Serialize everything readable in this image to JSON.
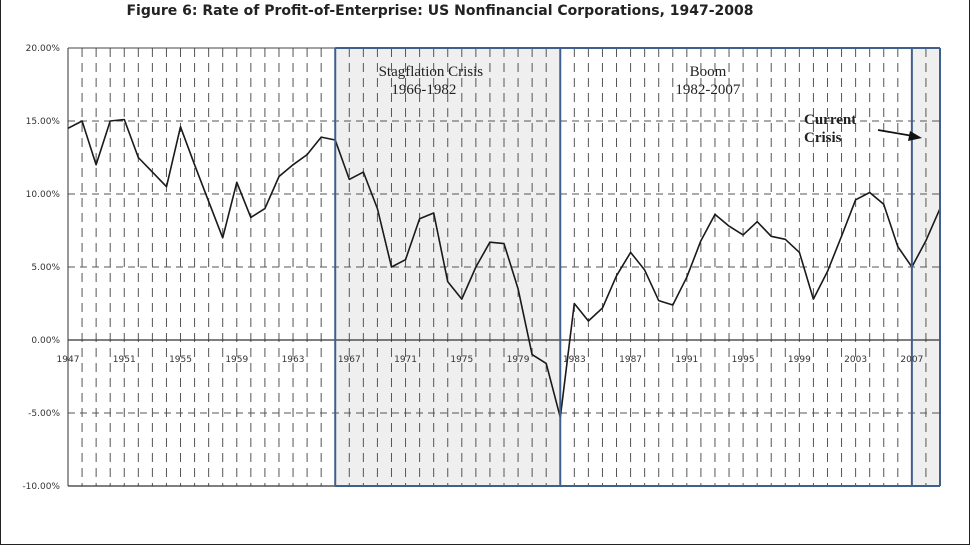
{
  "chart_data": {
    "type": "line",
    "title": "Figure 6: Rate of Profit-of-Enterprise:  US Nonfinancial  Corporations,  1947-2008",
    "xlabel": "",
    "ylabel": "",
    "xlim": [
      1947,
      2009
    ],
    "ylim": [
      -10,
      20
    ],
    "y_ticks": [
      "20.00%",
      "15.00%",
      "10.00%",
      "5.00%",
      "0.00%",
      "-5.00%",
      "-10.00%"
    ],
    "y_tick_values": [
      20,
      15,
      10,
      5,
      0,
      -5,
      -10
    ],
    "x_ticks": [
      "1947",
      "1951",
      "1955",
      "1959",
      "1963",
      "1967",
      "1971",
      "1975",
      "1979",
      "1983",
      "1987",
      "1991",
      "1995",
      "1999",
      "2003",
      "2007"
    ],
    "x_tick_values": [
      1947,
      1951,
      1955,
      1959,
      1963,
      1967,
      1971,
      1975,
      1979,
      1983,
      1987,
      1991,
      1995,
      1999,
      2003,
      2007
    ],
    "grid": true,
    "series": [
      {
        "name": "",
        "x": [
          1947,
          1948,
          1949,
          1950,
          1951,
          1952,
          1953,
          1954,
          1955,
          1956,
          1957,
          1958,
          1959,
          1960,
          1961,
          1962,
          1963,
          1964,
          1965,
          1966,
          1967,
          1968,
          1969,
          1970,
          1971,
          1972,
          1973,
          1974,
          1975,
          1976,
          1977,
          1978,
          1979,
          1980,
          1981,
          1982,
          1983,
          1984,
          1985,
          1986,
          1987,
          1988,
          1989,
          1990,
          1991,
          1992,
          1993,
          1994,
          1995,
          1996,
          1997,
          1998,
          1999,
          2000,
          2001,
          2002,
          2003,
          2004,
          2005,
          2006,
          2007,
          2008,
          2009
        ],
        "values": [
          14.5,
          15.0,
          12.0,
          15.0,
          15.1,
          12.5,
          11.5,
          10.5,
          14.6,
          12.0,
          9.5,
          7.0,
          10.8,
          8.4,
          9.0,
          11.2,
          12.0,
          12.7,
          13.9,
          13.7,
          11.0,
          11.5,
          9.0,
          5.0,
          5.5,
          8.3,
          8.7,
          4.0,
          2.8,
          5.0,
          6.7,
          6.6,
          3.5,
          -1.0,
          -1.6,
          -5.3,
          2.5,
          1.3,
          2.2,
          4.4,
          6.0,
          4.8,
          2.7,
          2.4,
          4.3,
          6.8,
          8.6,
          7.8,
          7.2,
          8.1,
          7.1,
          6.9,
          6.0,
          2.8,
          4.7,
          7.1,
          9.6,
          10.1,
          9.3,
          6.4,
          5.0,
          6.8,
          9.0
        ]
      }
    ],
    "shaded_regions": [
      {
        "start": 1966,
        "end": 1982,
        "label_line1": "Stagflation Crisis",
        "label_line2": "1966-1982"
      },
      {
        "start": 1982,
        "end": 2007,
        "label_line1": "Boom",
        "label_line2": "1982-2007"
      },
      {
        "start": 2007,
        "end": 2009,
        "label_line1": "Current",
        "label_line2": "Crisis"
      }
    ],
    "colors": {
      "line": "#1a1a1a",
      "shade": "#efefef",
      "band_border": "#3f5f8c",
      "grid": "#555555"
    }
  }
}
